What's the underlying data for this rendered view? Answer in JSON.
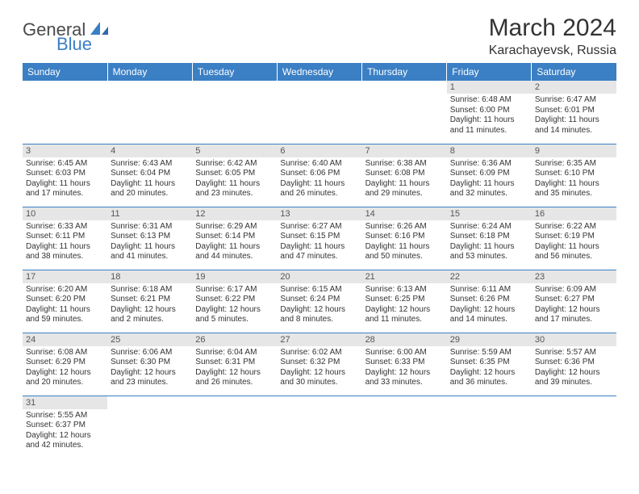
{
  "logo": {
    "text1": "General",
    "text2": "Blue",
    "color1": "#4a4a4a",
    "color2": "#3b7fc4"
  },
  "title": "March 2024",
  "location": "Karachayevsk, Russia",
  "colors": {
    "header_bg": "#3b7fc4",
    "header_fg": "#ffffff",
    "daynum_bg": "#e6e6e6",
    "border": "#3b7fc4"
  },
  "weekdays": [
    "Sunday",
    "Monday",
    "Tuesday",
    "Wednesday",
    "Thursday",
    "Friday",
    "Saturday"
  ],
  "weeks": [
    [
      null,
      null,
      null,
      null,
      null,
      {
        "n": "1",
        "sr": "6:48 AM",
        "ss": "6:00 PM",
        "dl": "11 hours and 11 minutes."
      },
      {
        "n": "2",
        "sr": "6:47 AM",
        "ss": "6:01 PM",
        "dl": "11 hours and 14 minutes."
      }
    ],
    [
      {
        "n": "3",
        "sr": "6:45 AM",
        "ss": "6:03 PM",
        "dl": "11 hours and 17 minutes."
      },
      {
        "n": "4",
        "sr": "6:43 AM",
        "ss": "6:04 PM",
        "dl": "11 hours and 20 minutes."
      },
      {
        "n": "5",
        "sr": "6:42 AM",
        "ss": "6:05 PM",
        "dl": "11 hours and 23 minutes."
      },
      {
        "n": "6",
        "sr": "6:40 AM",
        "ss": "6:06 PM",
        "dl": "11 hours and 26 minutes."
      },
      {
        "n": "7",
        "sr": "6:38 AM",
        "ss": "6:08 PM",
        "dl": "11 hours and 29 minutes."
      },
      {
        "n": "8",
        "sr": "6:36 AM",
        "ss": "6:09 PM",
        "dl": "11 hours and 32 minutes."
      },
      {
        "n": "9",
        "sr": "6:35 AM",
        "ss": "6:10 PM",
        "dl": "11 hours and 35 minutes."
      }
    ],
    [
      {
        "n": "10",
        "sr": "6:33 AM",
        "ss": "6:11 PM",
        "dl": "11 hours and 38 minutes."
      },
      {
        "n": "11",
        "sr": "6:31 AM",
        "ss": "6:13 PM",
        "dl": "11 hours and 41 minutes."
      },
      {
        "n": "12",
        "sr": "6:29 AM",
        "ss": "6:14 PM",
        "dl": "11 hours and 44 minutes."
      },
      {
        "n": "13",
        "sr": "6:27 AM",
        "ss": "6:15 PM",
        "dl": "11 hours and 47 minutes."
      },
      {
        "n": "14",
        "sr": "6:26 AM",
        "ss": "6:16 PM",
        "dl": "11 hours and 50 minutes."
      },
      {
        "n": "15",
        "sr": "6:24 AM",
        "ss": "6:18 PM",
        "dl": "11 hours and 53 minutes."
      },
      {
        "n": "16",
        "sr": "6:22 AM",
        "ss": "6:19 PM",
        "dl": "11 hours and 56 minutes."
      }
    ],
    [
      {
        "n": "17",
        "sr": "6:20 AM",
        "ss": "6:20 PM",
        "dl": "11 hours and 59 minutes."
      },
      {
        "n": "18",
        "sr": "6:18 AM",
        "ss": "6:21 PM",
        "dl": "12 hours and 2 minutes."
      },
      {
        "n": "19",
        "sr": "6:17 AM",
        "ss": "6:22 PM",
        "dl": "12 hours and 5 minutes."
      },
      {
        "n": "20",
        "sr": "6:15 AM",
        "ss": "6:24 PM",
        "dl": "12 hours and 8 minutes."
      },
      {
        "n": "21",
        "sr": "6:13 AM",
        "ss": "6:25 PM",
        "dl": "12 hours and 11 minutes."
      },
      {
        "n": "22",
        "sr": "6:11 AM",
        "ss": "6:26 PM",
        "dl": "12 hours and 14 minutes."
      },
      {
        "n": "23",
        "sr": "6:09 AM",
        "ss": "6:27 PM",
        "dl": "12 hours and 17 minutes."
      }
    ],
    [
      {
        "n": "24",
        "sr": "6:08 AM",
        "ss": "6:29 PM",
        "dl": "12 hours and 20 minutes."
      },
      {
        "n": "25",
        "sr": "6:06 AM",
        "ss": "6:30 PM",
        "dl": "12 hours and 23 minutes."
      },
      {
        "n": "26",
        "sr": "6:04 AM",
        "ss": "6:31 PM",
        "dl": "12 hours and 26 minutes."
      },
      {
        "n": "27",
        "sr": "6:02 AM",
        "ss": "6:32 PM",
        "dl": "12 hours and 30 minutes."
      },
      {
        "n": "28",
        "sr": "6:00 AM",
        "ss": "6:33 PM",
        "dl": "12 hours and 33 minutes."
      },
      {
        "n": "29",
        "sr": "5:59 AM",
        "ss": "6:35 PM",
        "dl": "12 hours and 36 minutes."
      },
      {
        "n": "30",
        "sr": "5:57 AM",
        "ss": "6:36 PM",
        "dl": "12 hours and 39 minutes."
      }
    ],
    [
      {
        "n": "31",
        "sr": "5:55 AM",
        "ss": "6:37 PM",
        "dl": "12 hours and 42 minutes."
      },
      null,
      null,
      null,
      null,
      null,
      null
    ]
  ],
  "labels": {
    "sunrise": "Sunrise:",
    "sunset": "Sunset:",
    "daylight": "Daylight:"
  }
}
